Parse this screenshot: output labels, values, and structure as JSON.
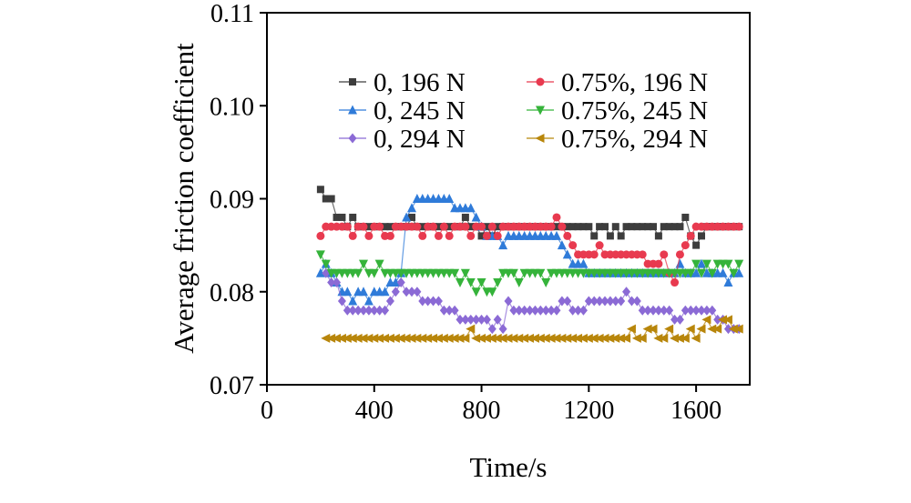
{
  "chart_data": {
    "type": "scatter",
    "title": "",
    "xlabel": "Time/s",
    "ylabel": "Average friction coefficient",
    "xlim": [
      0,
      1800
    ],
    "ylim": [
      0.07,
      0.11
    ],
    "xticks": [
      0,
      400,
      800,
      1200,
      1600
    ],
    "yticks": [
      0.07,
      0.08,
      0.09,
      0.1,
      0.11
    ],
    "grid": false,
    "legend_position": "top-inside",
    "legend_columns": 2,
    "series": [
      {
        "name": "0, 196 N",
        "marker": "square",
        "color": "#3d3d3d",
        "x_start": 200,
        "x_step": 20,
        "y": [
          0.091,
          0.09,
          0.09,
          0.088,
          0.088,
          0.087,
          0.088,
          0.087,
          0.087,
          0.087,
          0.087,
          0.087,
          0.087,
          0.087,
          0.087,
          0.087,
          0.087,
          0.088,
          0.087,
          0.087,
          0.087,
          0.087,
          0.087,
          0.087,
          0.087,
          0.087,
          0.087,
          0.088,
          0.087,
          0.087,
          0.086,
          0.087,
          0.086,
          0.087,
          0.087,
          0.087,
          0.087,
          0.087,
          0.087,
          0.087,
          0.087,
          0.087,
          0.087,
          0.087,
          0.087,
          0.087,
          0.087,
          0.087,
          0.087,
          0.087,
          0.087,
          0.086,
          0.087,
          0.087,
          0.086,
          0.087,
          0.086,
          0.087,
          0.087,
          0.087,
          0.087,
          0.087,
          0.087,
          0.086,
          0.087,
          0.087,
          0.087,
          0.087,
          0.088,
          0.086,
          0.085,
          0.086,
          0.087,
          0.087,
          0.087,
          0.087,
          0.087,
          0.087,
          0.087
        ]
      },
      {
        "name": "0, 245 N",
        "marker": "triangle-up",
        "color": "#2f7bd9",
        "x_start": 200,
        "x_step": 20,
        "y": [
          0.082,
          0.083,
          0.082,
          0.081,
          0.08,
          0.08,
          0.079,
          0.08,
          0.08,
          0.079,
          0.08,
          0.08,
          0.08,
          0.081,
          0.081,
          0.082,
          0.088,
          0.089,
          0.09,
          0.09,
          0.09,
          0.09,
          0.09,
          0.09,
          0.09,
          0.089,
          0.089,
          0.089,
          0.089,
          0.088,
          0.087,
          0.086,
          0.086,
          0.086,
          0.085,
          0.086,
          0.086,
          0.086,
          0.086,
          0.086,
          0.086,
          0.086,
          0.086,
          0.086,
          0.086,
          0.085,
          0.084,
          0.083,
          0.083,
          0.083,
          0.082,
          0.082,
          0.082,
          0.082,
          0.082,
          0.082,
          0.082,
          0.082,
          0.082,
          0.082,
          0.082,
          0.082,
          0.082,
          0.082,
          0.082,
          0.082,
          0.082,
          0.083,
          0.082,
          0.082,
          0.082,
          0.083,
          0.082,
          0.082,
          0.082,
          0.082,
          0.081,
          0.082,
          0.082
        ]
      },
      {
        "name": "0, 294 N",
        "marker": "diamond",
        "color": "#8b6ad5",
        "x_start": 220,
        "x_step": 20,
        "y": [
          0.082,
          0.081,
          0.081,
          0.079,
          0.078,
          0.078,
          0.078,
          0.078,
          0.078,
          0.078,
          0.078,
          0.078,
          0.079,
          0.08,
          0.081,
          0.08,
          0.08,
          0.08,
          0.079,
          0.079,
          0.079,
          0.079,
          0.078,
          0.078,
          0.078,
          0.077,
          0.077,
          0.077,
          0.077,
          0.077,
          0.077,
          0.076,
          0.077,
          0.076,
          0.079,
          0.078,
          0.078,
          0.078,
          0.078,
          0.078,
          0.078,
          0.078,
          0.078,
          0.078,
          0.079,
          0.079,
          0.078,
          0.078,
          0.078,
          0.079,
          0.079,
          0.079,
          0.079,
          0.079,
          0.079,
          0.079,
          0.08,
          0.079,
          0.079,
          0.078,
          0.078,
          0.078,
          0.078,
          0.078,
          0.078,
          0.077,
          0.077,
          0.078,
          0.078,
          0.078,
          0.078,
          0.078,
          0.078,
          0.077,
          0.077,
          0.076,
          0.076,
          0.076
        ]
      },
      {
        "name": "0.75%, 196 N",
        "marker": "circle",
        "color": "#e83a4f",
        "x_start": 200,
        "x_step": 20,
        "y": [
          0.086,
          0.087,
          0.087,
          0.087,
          0.087,
          0.087,
          0.086,
          0.087,
          0.087,
          0.086,
          0.087,
          0.087,
          0.086,
          0.086,
          0.087,
          0.087,
          0.087,
          0.087,
          0.087,
          0.086,
          0.087,
          0.087,
          0.086,
          0.087,
          0.086,
          0.087,
          0.087,
          0.087,
          0.086,
          0.087,
          0.087,
          0.086,
          0.087,
          0.086,
          0.087,
          0.087,
          0.087,
          0.087,
          0.087,
          0.087,
          0.087,
          0.087,
          0.087,
          0.087,
          0.088,
          0.087,
          0.086,
          0.085,
          0.084,
          0.084,
          0.084,
          0.084,
          0.085,
          0.084,
          0.084,
          0.084,
          0.084,
          0.084,
          0.084,
          0.084,
          0.084,
          0.083,
          0.083,
          0.083,
          0.084,
          0.082,
          0.081,
          0.084,
          0.085,
          0.086,
          0.087,
          0.087,
          0.087,
          0.087,
          0.087,
          0.087,
          0.087,
          0.087,
          0.087
        ]
      },
      {
        "name": "0.75%, 245 N",
        "marker": "triangle-down",
        "color": "#35b33a",
        "x_start": 200,
        "x_step": 20,
        "y": [
          0.084,
          0.083,
          0.082,
          0.082,
          0.082,
          0.082,
          0.082,
          0.082,
          0.083,
          0.082,
          0.082,
          0.083,
          0.082,
          0.082,
          0.082,
          0.082,
          0.082,
          0.082,
          0.082,
          0.082,
          0.082,
          0.082,
          0.082,
          0.082,
          0.082,
          0.082,
          0.081,
          0.082,
          0.081,
          0.08,
          0.081,
          0.08,
          0.08,
          0.081,
          0.082,
          0.082,
          0.082,
          0.081,
          0.082,
          0.082,
          0.082,
          0.082,
          0.081,
          0.082,
          0.082,
          0.082,
          0.082,
          0.082,
          0.082,
          0.082,
          0.082,
          0.082,
          0.082,
          0.082,
          0.082,
          0.082,
          0.082,
          0.082,
          0.082,
          0.082,
          0.082,
          0.082,
          0.082,
          0.082,
          0.082,
          0.082,
          0.082,
          0.082,
          0.082,
          0.082,
          0.083,
          0.082,
          0.083,
          0.082,
          0.083,
          0.083,
          0.083,
          0.082,
          0.083
        ]
      },
      {
        "name": "0.75%, 294 N",
        "marker": "triangle-left",
        "color": "#b8860b",
        "x_start": 220,
        "x_step": 20,
        "y": [
          0.075,
          0.075,
          0.075,
          0.075,
          0.075,
          0.075,
          0.075,
          0.075,
          0.075,
          0.075,
          0.075,
          0.075,
          0.075,
          0.075,
          0.075,
          0.075,
          0.075,
          0.075,
          0.075,
          0.075,
          0.075,
          0.075,
          0.075,
          0.075,
          0.075,
          0.075,
          0.075,
          0.076,
          0.075,
          0.075,
          0.075,
          0.075,
          0.075,
          0.075,
          0.075,
          0.075,
          0.075,
          0.075,
          0.075,
          0.075,
          0.075,
          0.075,
          0.075,
          0.075,
          0.075,
          0.075,
          0.075,
          0.075,
          0.075,
          0.075,
          0.075,
          0.075,
          0.075,
          0.075,
          0.075,
          0.075,
          0.075,
          0.076,
          0.075,
          0.075,
          0.076,
          0.076,
          0.075,
          0.075,
          0.076,
          0.075,
          0.075,
          0.075,
          0.076,
          0.075,
          0.076,
          0.077,
          0.076,
          0.076,
          0.077,
          0.077,
          0.076,
          0.076
        ]
      }
    ]
  }
}
